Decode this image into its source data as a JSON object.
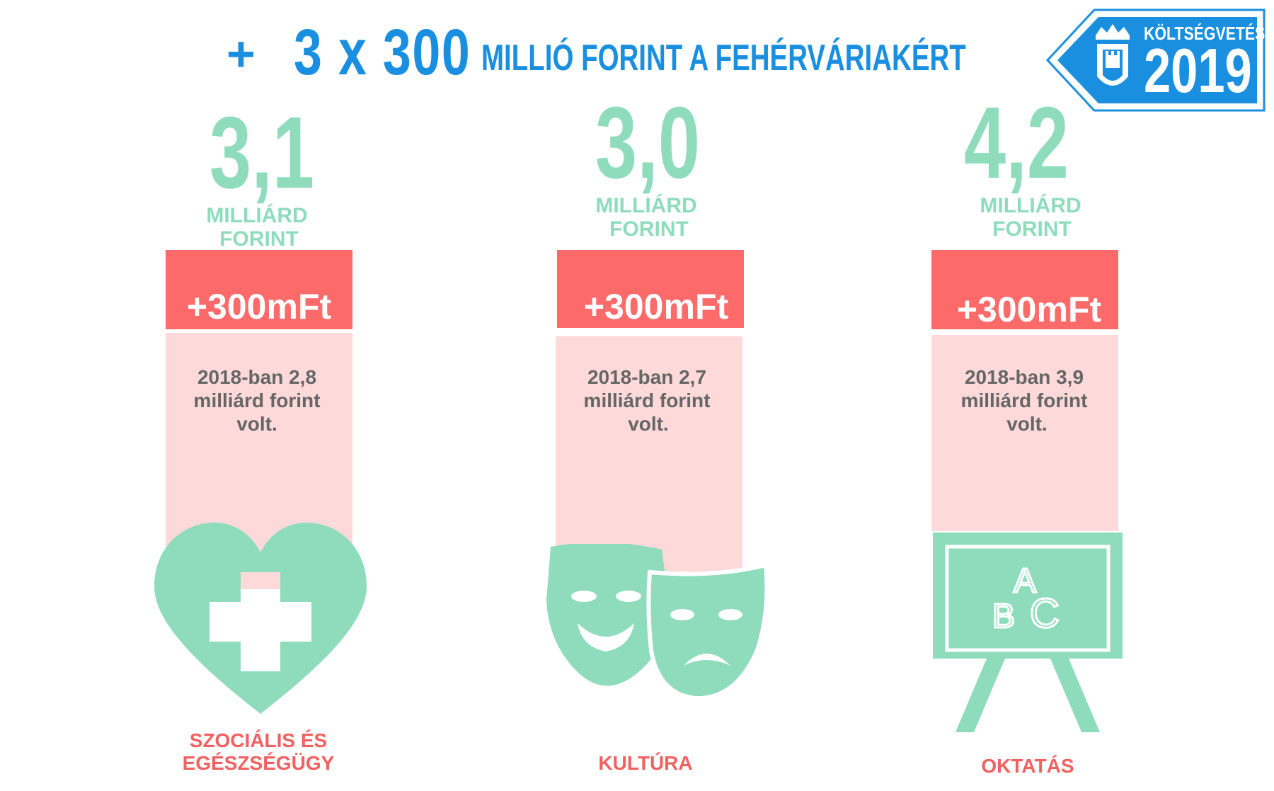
{
  "headline": {
    "plus": "+",
    "multiplier": "3 x 300",
    "text": "MILLIÓ FORINT A FEHÉRVÁRIAKÉRT"
  },
  "badge": {
    "label": "KÖLTSÉGVETÉS",
    "year": "2019",
    "icon": "crowned-castle-icon",
    "color": "#1a8fe0"
  },
  "colors": {
    "accent_green": "#8fdcbd",
    "increase_red": "#fd6a6a",
    "base_pink": "#fdd9d9",
    "category_red": "#f2605f",
    "text_gray": "#666666"
  },
  "items": [
    {
      "total": "3,1",
      "unit_line1": "MILLIÁRD",
      "unit_line2": "FORINT",
      "increase": "+300mFt",
      "previous_line1": "2018-ban 2,8",
      "previous_line2": "milliárd forint",
      "previous_line3": "volt.",
      "category_line1": "SZOCIÁLIS ÉS",
      "category_line2": "EGÉSZSÉGÜGY",
      "icon": "heart-cross-icon"
    },
    {
      "total": "3,0",
      "unit_line1": "MILLIÁRD",
      "unit_line2": "FORINT",
      "increase": "+300mFt",
      "previous_line1": "2018-ban 2,7",
      "previous_line2": "milliárd forint",
      "previous_line3": "volt.",
      "category_line1": "KULTÚRA",
      "category_line2": "",
      "icon": "theater-masks-icon"
    },
    {
      "total": "4,2",
      "unit_line1": "MILLIÁRD",
      "unit_line2": "FORINT",
      "increase": "+300mFt",
      "previous_line1": "2018-ban 3,9",
      "previous_line2": "milliárd forint",
      "previous_line3": "volt.",
      "category_line1": "OKTATÁS",
      "category_line2": "",
      "icon": "chalkboard-abc-icon",
      "board_text": [
        "A",
        "B",
        "C"
      ]
    }
  ]
}
